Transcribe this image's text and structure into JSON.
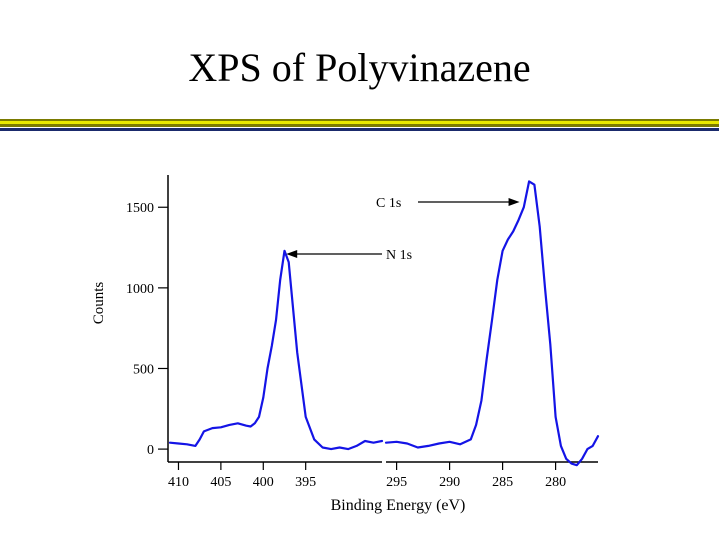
{
  "slide": {
    "title": "XPS of Polyvinazene"
  },
  "colors": {
    "rule_dark": "#7a7a00",
    "rule_bright": "#f0f000",
    "rule_navy": "#1a2a6c",
    "line": "#1414e6",
    "axis": "#000000"
  },
  "chart_data": {
    "type": "line",
    "title": "",
    "xlabel": "Binding Energy (eV)",
    "ylabel": "Counts",
    "x_reversed": true,
    "ylim": [
      -80,
      1700
    ],
    "yticks": [
      0,
      500,
      1000,
      1500
    ],
    "ytick_labels": [
      "0",
      "500",
      "1000",
      "1500"
    ],
    "grid": false,
    "legend": "none",
    "segments": [
      {
        "xlim": [
          411,
          386
        ],
        "xticks": [
          410,
          405,
          400,
          395
        ],
        "xtick_labels": [
          "410",
          "405",
          "400",
          "395"
        ],
        "x": [
          411,
          410,
          409,
          408,
          407.5,
          407,
          406,
          405,
          404,
          403,
          402,
          401.5,
          401,
          400.5,
          400,
          399.5,
          399,
          398.5,
          398,
          397.5,
          397,
          396,
          395,
          394,
          393,
          392,
          391,
          390,
          389,
          388,
          387,
          386
        ],
        "y": [
          40,
          35,
          30,
          20,
          60,
          110,
          130,
          135,
          150,
          160,
          145,
          140,
          160,
          200,
          320,
          500,
          640,
          800,
          1050,
          1230,
          1160,
          600,
          200,
          60,
          10,
          0,
          10,
          0,
          20,
          50,
          40,
          50
        ]
      },
      {
        "xlim": [
          296,
          276
        ],
        "xticks": [
          295,
          290,
          285,
          280
        ],
        "xtick_labels": [
          "295",
          "290",
          "285",
          "280"
        ],
        "x": [
          296,
          295,
          294,
          293,
          292,
          291,
          290,
          289,
          288,
          287.5,
          287,
          286.5,
          286,
          285.5,
          285,
          284.5,
          284,
          283.5,
          283,
          282.5,
          282,
          281.5,
          281,
          280.5,
          280,
          279.5,
          279,
          278.5,
          278,
          277.5,
          277,
          276.5,
          276
        ],
        "y": [
          40,
          45,
          35,
          10,
          20,
          35,
          45,
          30,
          60,
          150,
          300,
          560,
          800,
          1050,
          1230,
          1300,
          1350,
          1420,
          1500,
          1660,
          1640,
          1380,
          1000,
          650,
          200,
          20,
          -60,
          -90,
          -100,
          -60,
          0,
          20,
          80
        ]
      }
    ],
    "annotations": [
      {
        "text": "C 1s",
        "points_to": {
          "segment": 1,
          "x": 283.4,
          "y": 1500
        }
      },
      {
        "text": "N 1s",
        "points_to": {
          "segment": 0,
          "x": 397.3,
          "y": 1170
        }
      }
    ]
  }
}
